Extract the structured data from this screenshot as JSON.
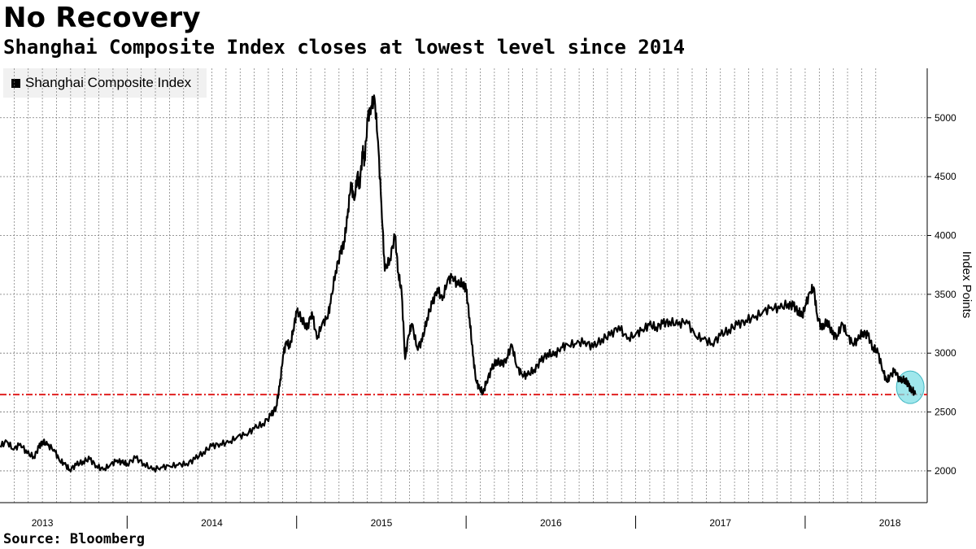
{
  "header": {
    "title": "No Recovery",
    "subtitle": "Shanghai Composite Index closes at lowest level since 2014"
  },
  "footer": {
    "source": "Source: Bloomberg"
  },
  "colors": {
    "series": "#000000",
    "reference_line": "#e02020",
    "highlight_fill": "#7fdfe6",
    "highlight_stroke": "#3fb6c2",
    "grid": "#777777"
  },
  "chart_data": {
    "type": "line",
    "title": "No Recovery",
    "subtitle": "Shanghai Composite Index closes at lowest level since 2014",
    "ylabel": "Index Points",
    "xlabel": "",
    "ylim": [
      1730,
      5420
    ],
    "xlim": [
      2013.25,
      2018.72
    ],
    "y_ticks": [
      2000,
      2500,
      3000,
      3500,
      4000,
      4500,
      5000
    ],
    "x_ticks": [
      {
        "label": "2013",
        "value": 2013.5
      },
      {
        "label": "2014",
        "value": 2014.5
      },
      {
        "label": "2015",
        "value": 2015.5
      },
      {
        "label": "2016",
        "value": 2016.5
      },
      {
        "label": "2017",
        "value": 2017.5
      },
      {
        "label": "2018",
        "value": 2018.5
      }
    ],
    "year_boundaries": [
      2014.0,
      2015.0,
      2016.0,
      2017.0,
      2018.0
    ],
    "grid": true,
    "legend": {
      "entries": [
        "Shanghai Composite Index"
      ],
      "position": "top-left"
    },
    "reference_line": {
      "value": 2648,
      "style": "dash-dot",
      "label": ""
    },
    "highlight": {
      "x": 2018.62,
      "y": 2710
    },
    "series": [
      {
        "name": "Shanghai Composite Index",
        "x": [
          2013.25,
          2013.29,
          2013.33,
          2013.37,
          2013.41,
          2013.45,
          2013.48,
          2013.5,
          2013.53,
          2013.57,
          2013.6,
          2013.63,
          2013.66,
          2013.7,
          2013.74,
          2013.78,
          2013.82,
          2013.86,
          2013.9,
          2013.94,
          2013.97,
          2014.0,
          2014.05,
          2014.1,
          2014.15,
          2014.2,
          2014.25,
          2014.3,
          2014.35,
          2014.4,
          2014.45,
          2014.5,
          2014.55,
          2014.6,
          2014.65,
          2014.7,
          2014.75,
          2014.8,
          2014.85,
          2014.88,
          2014.9,
          2014.92,
          2014.94,
          2014.96,
          2014.98,
          2015.0,
          2015.03,
          2015.06,
          2015.09,
          2015.12,
          2015.15,
          2015.18,
          2015.2,
          2015.23,
          2015.26,
          2015.28,
          2015.3,
          2015.32,
          2015.34,
          2015.36,
          2015.37,
          2015.39,
          2015.4,
          2015.42,
          2015.44,
          2015.46,
          2015.48,
          2015.5,
          2015.52,
          2015.55,
          2015.58,
          2015.6,
          2015.62,
          2015.64,
          2015.66,
          2015.68,
          2015.71,
          2015.74,
          2015.77,
          2015.8,
          2015.83,
          2015.86,
          2015.89,
          2015.92,
          2015.95,
          2015.98,
          2016.0,
          2016.02,
          2016.04,
          2016.06,
          2016.08,
          2016.1,
          2016.12,
          2016.15,
          2016.18,
          2016.21,
          2016.24,
          2016.27,
          2016.3,
          2016.33,
          2016.36,
          2016.4,
          2016.44,
          2016.48,
          2016.52,
          2016.56,
          2016.6,
          2016.65,
          2016.7,
          2016.75,
          2016.8,
          2016.85,
          2016.9,
          2016.95,
          2017.0,
          2017.04,
          2017.08,
          2017.12,
          2017.16,
          2017.2,
          2017.25,
          2017.3,
          2017.35,
          2017.4,
          2017.45,
          2017.5,
          2017.55,
          2017.6,
          2017.65,
          2017.7,
          2017.75,
          2017.8,
          2017.85,
          2017.9,
          2017.93,
          2017.96,
          2017.98,
          2018.0,
          2018.03,
          2018.05,
          2018.07,
          2018.1,
          2018.13,
          2018.16,
          2018.19,
          2018.22,
          2018.25,
          2018.28,
          2018.31,
          2018.34,
          2018.37,
          2018.4,
          2018.43,
          2018.46,
          2018.48,
          2018.5,
          2018.53,
          2018.56,
          2018.59,
          2018.61,
          2018.63,
          2018.65
        ],
        "values": [
          2210,
          2250,
          2180,
          2230,
          2150,
          2120,
          2200,
          2250,
          2220,
          2180,
          2090,
          2060,
          2010,
          2050,
          2080,
          2100,
          2040,
          2010,
          2050,
          2090,
          2070,
          2060,
          2110,
          2060,
          2010,
          2030,
          2040,
          2050,
          2060,
          2100,
          2160,
          2210,
          2230,
          2240,
          2290,
          2310,
          2360,
          2400,
          2470,
          2550,
          2720,
          2980,
          3100,
          3050,
          3200,
          3350,
          3300,
          3200,
          3350,
          3120,
          3250,
          3300,
          3420,
          3700,
          3850,
          3950,
          4150,
          4450,
          4300,
          4530,
          4400,
          4720,
          4630,
          5000,
          5100,
          5160,
          4800,
          4270,
          3700,
          3800,
          4000,
          3680,
          3510,
          2950,
          3150,
          3250,
          3050,
          3100,
          3300,
          3420,
          3550,
          3450,
          3620,
          3650,
          3580,
          3600,
          3540,
          3300,
          2980,
          2760,
          2700,
          2660,
          2760,
          2860,
          2940,
          2900,
          2960,
          3070,
          2880,
          2820,
          2810,
          2860,
          2930,
          3000,
          2980,
          3050,
          3070,
          3080,
          3100,
          3050,
          3120,
          3150,
          3230,
          3120,
          3160,
          3200,
          3240,
          3220,
          3250,
          3270,
          3240,
          3280,
          3150,
          3120,
          3080,
          3150,
          3200,
          3240,
          3280,
          3300,
          3350,
          3390,
          3380,
          3420,
          3400,
          3360,
          3310,
          3400,
          3520,
          3560,
          3330,
          3200,
          3280,
          3160,
          3150,
          3250,
          3150,
          3080,
          3110,
          3180,
          3150,
          3050,
          3000,
          2850,
          2760,
          2800,
          2860,
          2760,
          2780,
          2720,
          2690,
          2650
        ]
      }
    ]
  }
}
